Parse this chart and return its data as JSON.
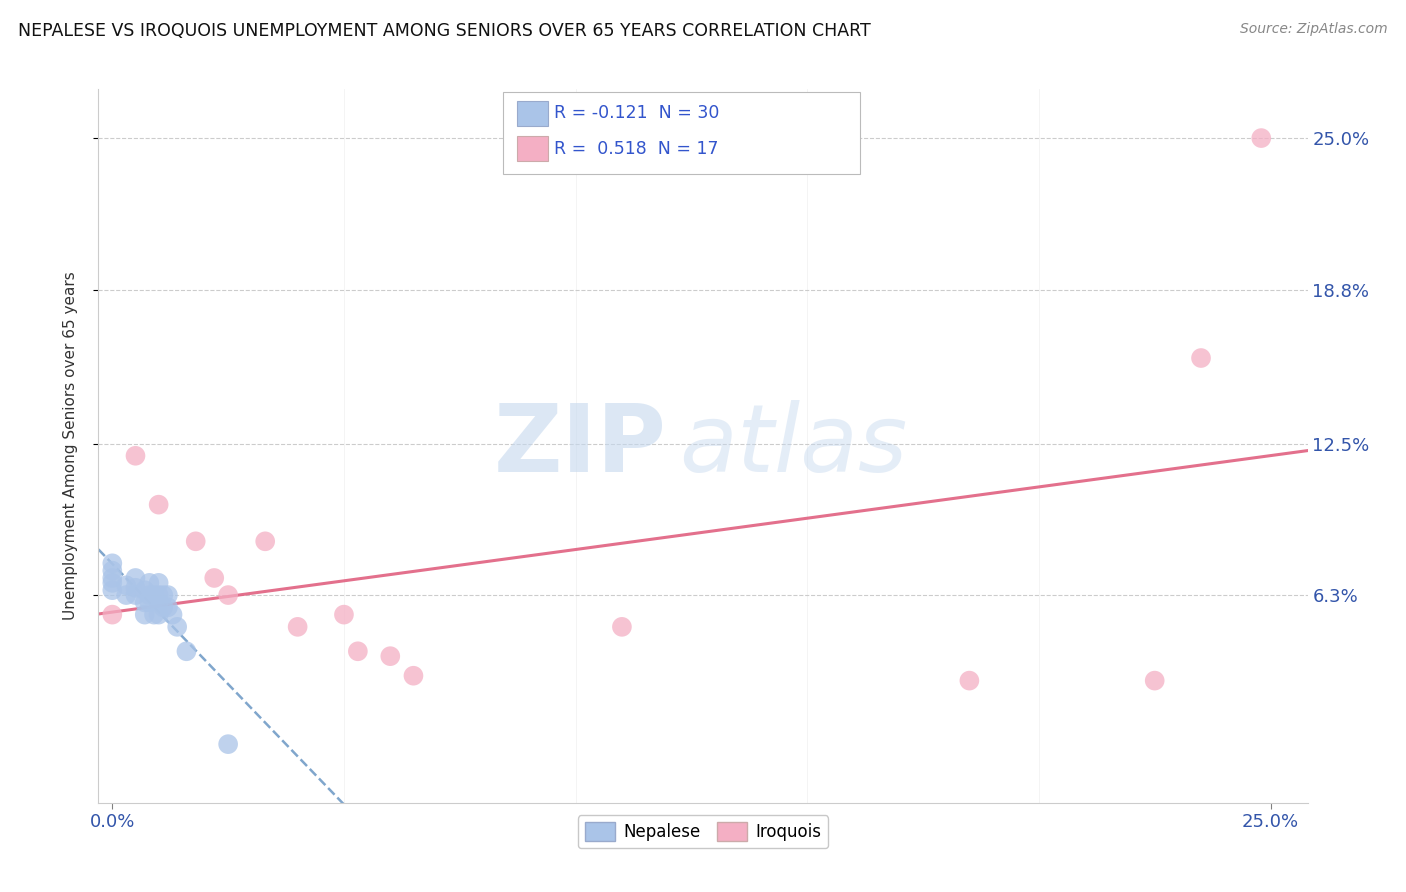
{
  "title": "NEPALESE VS IROQUOIS UNEMPLOYMENT AMONG SENIORS OVER 65 YEARS CORRELATION CHART",
  "source": "Source: ZipAtlas.com",
  "ylabel": "Unemployment Among Seniors over 65 years",
  "xlim": [
    -0.003,
    0.258
  ],
  "ylim": [
    -0.022,
    0.27
  ],
  "ytick_labels": [
    "6.3%",
    "12.5%",
    "18.8%",
    "25.0%"
  ],
  "ytick_values": [
    0.063,
    0.125,
    0.188,
    0.25
  ],
  "xtick_values": [
    0.0,
    0.25
  ],
  "xtick_labels": [
    "0.0%",
    "25.0%"
  ],
  "nepalese_R": "-0.121",
  "nepalese_N": "30",
  "iroquois_R": "0.518",
  "iroquois_N": "17",
  "nepalese_color": "#aac4e8",
  "iroquois_color": "#f4afc4",
  "nepalese_line_color": "#5588bb",
  "iroquois_line_color": "#e06080",
  "background_color": "#ffffff",
  "watermark_zip": "ZIP",
  "watermark_atlas": "atlas",
  "nepalese_points_x": [
    0.0,
    0.0,
    0.0,
    0.0,
    0.0,
    0.003,
    0.003,
    0.005,
    0.005,
    0.005,
    0.007,
    0.007,
    0.007,
    0.008,
    0.008,
    0.008,
    0.009,
    0.009,
    0.01,
    0.01,
    0.01,
    0.01,
    0.011,
    0.011,
    0.012,
    0.012,
    0.013,
    0.014,
    0.016,
    0.025
  ],
  "nepalese_points_y": [
    0.065,
    0.068,
    0.07,
    0.073,
    0.076,
    0.063,
    0.067,
    0.063,
    0.066,
    0.07,
    0.055,
    0.06,
    0.065,
    0.06,
    0.063,
    0.068,
    0.055,
    0.063,
    0.055,
    0.06,
    0.063,
    0.068,
    0.058,
    0.063,
    0.058,
    0.063,
    0.055,
    0.05,
    0.04,
    0.002
  ],
  "iroquois_points_x": [
    0.0,
    0.005,
    0.01,
    0.018,
    0.022,
    0.025,
    0.033,
    0.04,
    0.05,
    0.053,
    0.06,
    0.065,
    0.11,
    0.185,
    0.225,
    0.235,
    0.248
  ],
  "iroquois_points_y": [
    0.055,
    0.12,
    0.1,
    0.085,
    0.07,
    0.063,
    0.085,
    0.05,
    0.055,
    0.04,
    0.038,
    0.03,
    0.05,
    0.028,
    0.028,
    0.16,
    0.25
  ]
}
